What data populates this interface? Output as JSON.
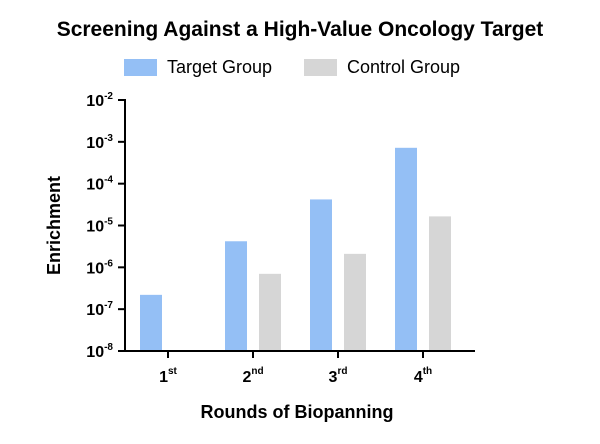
{
  "chart_data": {
    "type": "bar",
    "title": "Screening Against a High-Value Oncology Target",
    "xlabel": "Rounds of Biopanning",
    "ylabel": "Enrichment",
    "yscale": "log",
    "ylim": [
      1e-08,
      0.01
    ],
    "categories": [
      {
        "base": "1",
        "sup": "st"
      },
      {
        "base": "2",
        "sup": "nd"
      },
      {
        "base": "3",
        "sup": "rd"
      },
      {
        "base": "4",
        "sup": "th"
      }
    ],
    "y_ticks": [
      {
        "base": "10",
        "exp": "-2",
        "value": 0.01
      },
      {
        "base": "10",
        "exp": "-3",
        "value": 0.001
      },
      {
        "base": "10",
        "exp": "-4",
        "value": 0.0001
      },
      {
        "base": "10",
        "exp": "-5",
        "value": 1e-05
      },
      {
        "base": "10",
        "exp": "-6",
        "value": 1e-06
      },
      {
        "base": "10",
        "exp": "-7",
        "value": 1e-07
      },
      {
        "base": "10",
        "exp": "-8",
        "value": 1e-08
      }
    ],
    "series": [
      {
        "name": "Target Group",
        "color": "#94bff5",
        "values": [
          2.2e-07,
          4.2e-06,
          4.2e-05,
          0.00072
        ]
      },
      {
        "name": "Control Group",
        "color": "#d6d6d6",
        "values": [
          null,
          7e-07,
          2.1e-06,
          1.65e-05
        ]
      }
    ],
    "grid": false,
    "legend_position": "top"
  }
}
